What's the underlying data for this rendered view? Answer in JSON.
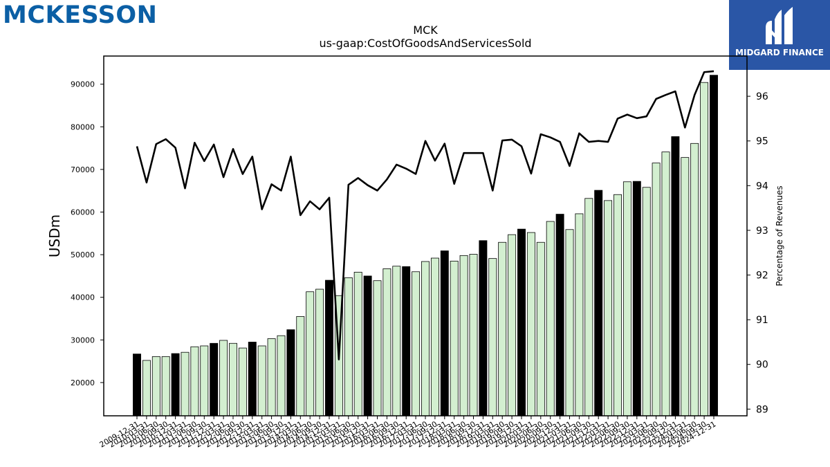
{
  "logos": {
    "left_text": "MCKESSON",
    "right_text": "MIDGARD FINANCE",
    "right_icon": "midgard-m-icon"
  },
  "colors": {
    "bar_fill": "#d3efd0",
    "bar_highlight": "#000000",
    "line": "#000000",
    "brand_blue": "#0b5fa5",
    "brand_orange": "#f28c28",
    "midgard_blue": "#2a56a6"
  },
  "chart_data": {
    "type": "bar",
    "title": "MCK",
    "subtitle": "us-gaap:CostOfGoodsAndServicesSold",
    "ylabel": "USDm",
    "y2label": "Percentage of Revenues",
    "ylim": [
      12200,
      96600
    ],
    "y2lim": [
      88.85,
      96.9
    ],
    "yticks": [
      20000,
      30000,
      40000,
      50000,
      60000,
      70000,
      80000,
      90000
    ],
    "y2ticks": [
      89,
      90,
      91,
      92,
      93,
      94,
      95,
      96
    ],
    "grid": false,
    "categories": [
      "2009-12-31",
      "2010-03-31",
      "2010-06-30",
      "2010-09-30",
      "2010-12-31",
      "2011-03-31",
      "2011-06-30",
      "2011-09-30",
      "2011-12-31",
      "2012-03-31",
      "2012-06-30",
      "2012-09-30",
      "2012-12-31",
      "2013-03-31",
      "2013-06-30",
      "2013-09-30",
      "2013-12-31",
      "2014-03-31",
      "2014-06-30",
      "2014-09-30",
      "2014-12-31",
      "2015-03-31",
      "2015-06-30",
      "2015-09-30",
      "2015-12-31",
      "2016-03-31",
      "2016-06-30",
      "2016-09-30",
      "2016-12-31",
      "2017-03-31",
      "2017-06-30",
      "2017-09-30",
      "2017-12-31",
      "2018-03-31",
      "2018-06-30",
      "2018-09-30",
      "2018-12-31",
      "2019-03-31",
      "2019-06-30",
      "2019-09-30",
      "2019-12-31",
      "2020-03-31",
      "2020-06-30",
      "2020-09-30",
      "2020-12-31",
      "2021-03-31",
      "2021-06-30",
      "2021-09-30",
      "2021-12-31",
      "2022-03-31",
      "2022-06-30",
      "2022-09-30",
      "2022-12-31",
      "2023-03-31",
      "2023-06-30",
      "2023-09-30",
      "2023-12-31",
      "2024-03-31",
      "2024-06-30",
      "2024-09-30",
      "2024-12-31"
    ],
    "series": [
      {
        "type": "bar",
        "axis": "left",
        "values": [
          26700,
          25200,
          26100,
          26100,
          26800,
          27100,
          28400,
          28600,
          29200,
          29900,
          29200,
          28100,
          29500,
          28600,
          30300,
          31000,
          32400,
          35500,
          41300,
          41900,
          44000,
          40400,
          44600,
          45900,
          45000,
          43900,
          46700,
          47300,
          47200,
          46000,
          48400,
          49200,
          50900,
          48500,
          49800,
          50100,
          53300,
          49100,
          52900,
          54700,
          56000,
          55200,
          52900,
          57800,
          59500,
          55900,
          59600,
          63200,
          65100,
          62700,
          64100,
          67100,
          67200,
          65800,
          71500,
          74100,
          77700,
          72800,
          76100,
          90400,
          92100
        ],
        "highlight": [
          true,
          false,
          false,
          false,
          true,
          false,
          false,
          false,
          true,
          false,
          false,
          false,
          true,
          false,
          false,
          false,
          true,
          false,
          false,
          false,
          true,
          false,
          false,
          false,
          true,
          false,
          false,
          false,
          true,
          false,
          false,
          false,
          true,
          false,
          false,
          false,
          true,
          false,
          false,
          false,
          true,
          false,
          false,
          false,
          true,
          false,
          false,
          false,
          true,
          false,
          false,
          false,
          true,
          false,
          false,
          false,
          true,
          false,
          false,
          false,
          true
        ]
      },
      {
        "type": "line",
        "axis": "right",
        "values": [
          94.88,
          94.07,
          94.93,
          95.04,
          94.85,
          93.94,
          94.96,
          94.55,
          94.92,
          94.19,
          94.82,
          94.26,
          94.65,
          93.47,
          94.03,
          93.89,
          94.65,
          93.34,
          93.65,
          93.47,
          93.73,
          90.11,
          94.02,
          94.17,
          94.01,
          93.89,
          94.14,
          94.47,
          94.38,
          94.26,
          95.0,
          94.56,
          94.94,
          94.04,
          94.73,
          94.73,
          94.73,
          93.89,
          95.01,
          95.03,
          94.88,
          94.27,
          95.15,
          95.08,
          94.98,
          94.44,
          95.17,
          94.98,
          95.0,
          94.98,
          95.5,
          95.59,
          95.51,
          95.55,
          95.94,
          96.03,
          96.11,
          95.3,
          96.03,
          96.54,
          96.56
        ]
      }
    ]
  }
}
